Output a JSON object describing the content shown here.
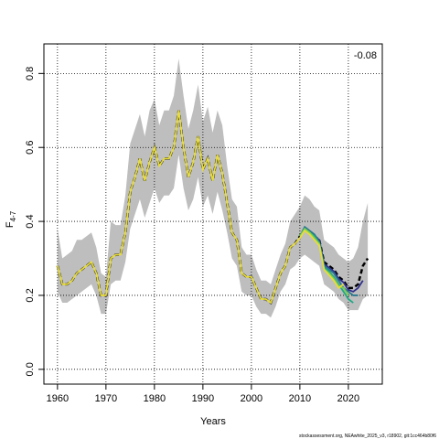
{
  "chart_data": {
    "type": "line",
    "annotation": "-0.08",
    "xlabel": "Years",
    "ylabel": "F",
    "ylabel_sub": "4-7",
    "footer": "stockassessment.org, NEAwhite_2025_v3, r18902, git:1cc464b80f6",
    "xlim": [
      1957.2,
      2027
    ],
    "ylim": [
      -0.04,
      0.88
    ],
    "xticks": [
      1960,
      1970,
      1980,
      1990,
      2000,
      2010,
      2020
    ],
    "yticks": [
      {
        "value": 0,
        "label": "0.0"
      },
      0.2,
      0.4,
      0.6,
      0.8
    ],
    "grid": true,
    "x": [
      1960,
      1961,
      1962,
      1963,
      1964,
      1965,
      1966,
      1967,
      1968,
      1969,
      1970,
      1971,
      1972,
      1973,
      1974,
      1975,
      1976,
      1977,
      1978,
      1979,
      1980,
      1981,
      1982,
      1983,
      1984,
      1985,
      1986,
      1987,
      1988,
      1989,
      1990,
      1991,
      1992,
      1993,
      1994,
      1995,
      1996,
      1997,
      1998,
      1999,
      2000,
      2001,
      2002,
      2003,
      2004,
      2005,
      2006,
      2007,
      2008,
      2009,
      2010,
      2011,
      2012,
      2013,
      2014,
      2015,
      2016,
      2017,
      2018,
      2019,
      2020,
      2021,
      2022,
      2023,
      2024
    ],
    "band": {
      "color": "#bebebe",
      "lower": [
        0.21,
        0.18,
        0.18,
        0.19,
        0.2,
        0.21,
        0.22,
        0.23,
        0.2,
        0.15,
        0.15,
        0.23,
        0.24,
        0.24,
        0.29,
        0.38,
        0.42,
        0.46,
        0.41,
        0.45,
        0.49,
        0.45,
        0.47,
        0.47,
        0.49,
        0.58,
        0.49,
        0.43,
        0.46,
        0.52,
        0.44,
        0.47,
        0.42,
        0.48,
        0.43,
        0.37,
        0.3,
        0.28,
        0.21,
        0.2,
        0.2,
        0.17,
        0.15,
        0.15,
        0.14,
        0.17,
        0.21,
        0.23,
        0.27,
        0.28,
        0.3,
        0.31,
        0.3,
        0.29,
        0.28,
        0.23,
        0.22,
        0.21,
        0.19,
        0.18,
        0.16,
        0.16,
        0.16,
        0.19,
        0.2
      ],
      "upper": [
        0.38,
        0.3,
        0.31,
        0.32,
        0.35,
        0.35,
        0.36,
        0.37,
        0.33,
        0.26,
        0.25,
        0.4,
        0.39,
        0.39,
        0.47,
        0.61,
        0.65,
        0.69,
        0.63,
        0.7,
        0.73,
        0.66,
        0.7,
        0.7,
        0.74,
        0.84,
        0.74,
        0.65,
        0.7,
        0.77,
        0.67,
        0.71,
        0.64,
        0.7,
        0.66,
        0.55,
        0.46,
        0.44,
        0.33,
        0.31,
        0.31,
        0.27,
        0.24,
        0.24,
        0.23,
        0.27,
        0.31,
        0.34,
        0.4,
        0.42,
        0.44,
        0.47,
        0.46,
        0.44,
        0.43,
        0.35,
        0.34,
        0.33,
        0.31,
        0.3,
        0.29,
        0.3,
        0.33,
        0.4,
        0.45
      ]
    },
    "series": [
      {
        "color": "#000000",
        "dash": true,
        "values": [
          0.28,
          0.23,
          0.23,
          0.24,
          0.26,
          0.27,
          0.28,
          0.29,
          0.26,
          0.2,
          0.2,
          0.3,
          0.31,
          0.31,
          0.37,
          0.48,
          0.52,
          0.57,
          0.51,
          0.56,
          0.6,
          0.55,
          0.57,
          0.57,
          0.6,
          0.7,
          0.6,
          0.52,
          0.56,
          0.63,
          0.54,
          0.57,
          0.51,
          0.58,
          0.53,
          0.45,
          0.37,
          0.35,
          0.26,
          0.25,
          0.25,
          0.22,
          0.19,
          0.19,
          0.18,
          0.22,
          0.26,
          0.28,
          0.33,
          0.34,
          0.36,
          0.38,
          0.37,
          0.36,
          0.35,
          0.29,
          0.28,
          0.27,
          0.25,
          0.24,
          0.22,
          0.22,
          0.23,
          0.28,
          0.3
        ]
      },
      {
        "color": "#2e2f8c",
        "x": [
          2010,
          2011,
          2012,
          2013,
          2014,
          2015,
          2016,
          2017,
          2018,
          2019,
          2020,
          2021,
          2022,
          2023
        ],
        "values": [
          0.36,
          0.38,
          0.37,
          0.36,
          0.35,
          0.285,
          0.275,
          0.265,
          0.245,
          0.235,
          0.215,
          0.21,
          0.22,
          0.24
        ]
      },
      {
        "color": "#2a788e",
        "x": [
          2010,
          2011,
          2012,
          2013,
          2014,
          2015,
          2016,
          2017,
          2018,
          2019,
          2020,
          2021,
          2022
        ],
        "values": [
          0.36,
          0.385,
          0.375,
          0.365,
          0.345,
          0.28,
          0.27,
          0.26,
          0.24,
          0.22,
          0.21,
          0.2,
          0.2
        ]
      },
      {
        "color": "#22a884",
        "x": [
          2010,
          2011,
          2012,
          2013,
          2014,
          2015,
          2016,
          2017,
          2018,
          2019,
          2020,
          2021
        ],
        "values": [
          0.36,
          0.38,
          0.37,
          0.36,
          0.34,
          0.275,
          0.265,
          0.25,
          0.23,
          0.21,
          0.19,
          0.18
        ]
      },
      {
        "color": "#7ad151",
        "x": [
          2010,
          2011,
          2012,
          2013,
          2014,
          2015,
          2016,
          2017,
          2018,
          2019,
          2020
        ],
        "values": [
          0.36,
          0.38,
          0.37,
          0.355,
          0.34,
          0.27,
          0.26,
          0.245,
          0.225,
          0.22,
          0.2
        ]
      },
      {
        "color": "#e8dc3a",
        "x": [
          1960,
          1961,
          1962,
          1963,
          1964,
          1965,
          1966,
          1967,
          1968,
          1969,
          1970,
          1971,
          1972,
          1973,
          1974,
          1975,
          1976,
          1977,
          1978,
          1979,
          1980,
          1981,
          1982,
          1983,
          1984,
          1985,
          1986,
          1987,
          1988,
          1989,
          1990,
          1991,
          1992,
          1993,
          1994,
          1995,
          1996,
          1997,
          1998,
          1999,
          2000,
          2001,
          2002,
          2003,
          2004,
          2005,
          2006,
          2007,
          2008,
          2009,
          2010,
          2011,
          2012,
          2013,
          2014,
          2015,
          2016,
          2017,
          2018,
          2019
        ],
        "values": [
          0.28,
          0.23,
          0.23,
          0.24,
          0.26,
          0.27,
          0.28,
          0.29,
          0.26,
          0.2,
          0.2,
          0.3,
          0.31,
          0.31,
          0.37,
          0.48,
          0.52,
          0.57,
          0.51,
          0.56,
          0.6,
          0.55,
          0.57,
          0.57,
          0.6,
          0.7,
          0.6,
          0.52,
          0.56,
          0.63,
          0.54,
          0.57,
          0.51,
          0.58,
          0.53,
          0.45,
          0.37,
          0.35,
          0.26,
          0.25,
          0.25,
          0.22,
          0.19,
          0.19,
          0.18,
          0.22,
          0.26,
          0.28,
          0.33,
          0.34,
          0.355,
          0.375,
          0.365,
          0.35,
          0.335,
          0.27,
          0.255,
          0.24,
          0.22,
          0.23
        ]
      }
    ]
  }
}
